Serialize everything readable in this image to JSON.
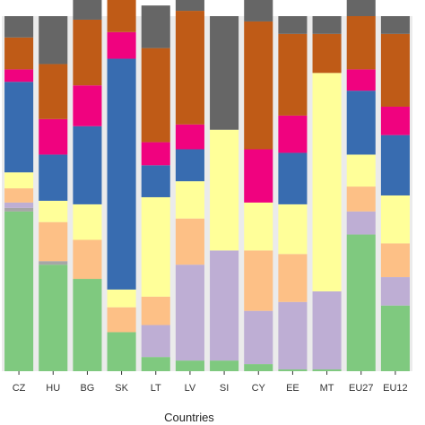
{
  "chart_data": {
    "type": "bar",
    "stacked": true,
    "normalized": true,
    "title": "",
    "xlabel": "Countries",
    "ylabel": "",
    "ylim": [
      0,
      1
    ],
    "grid": false,
    "legend": "none",
    "categories": [
      "CZ",
      "HU",
      "BG",
      "SK",
      "LT",
      "LV",
      "SI",
      "CY",
      "EE",
      "MT",
      "EU27",
      "EU12"
    ],
    "series": [
      {
        "color": "#7fc97f",
        "values": [
          0.45,
          0.3,
          0.26,
          0.11,
          0.04,
          0.03,
          0.03,
          0.02,
          0.005,
          0.005,
          0.385,
          0.185
        ]
      },
      {
        "color": "#a6a6a6",
        "values": [
          0.01,
          0.01,
          0.0,
          0.0,
          0.0,
          0.0,
          0.0,
          0.0,
          0.0,
          0.0,
          0.0,
          0.0
        ]
      },
      {
        "color": "#beaed4",
        "values": [
          0.015,
          0.0,
          0.0,
          0.0,
          0.09,
          0.27,
          0.31,
          0.15,
          0.19,
          0.22,
          0.065,
          0.08
        ]
      },
      {
        "color": "#fdc086",
        "values": [
          0.04,
          0.11,
          0.11,
          0.07,
          0.08,
          0.13,
          0.0,
          0.17,
          0.135,
          0.0,
          0.07,
          0.095
        ]
      },
      {
        "color": "#ffff99",
        "values": [
          0.045,
          0.06,
          0.1,
          0.05,
          0.28,
          0.105,
          0.34,
          0.135,
          0.14,
          0.615,
          0.09,
          0.135
        ]
      },
      {
        "color": "#386cb0",
        "values": [
          0.255,
          0.13,
          0.22,
          0.65,
          0.09,
          0.09,
          0.0,
          0.0,
          0.145,
          0.0,
          0.18,
          0.17
        ]
      },
      {
        "color": "#f0027f",
        "values": [
          0.035,
          0.1,
          0.115,
          0.075,
          0.065,
          0.07,
          0.0,
          0.15,
          0.105,
          0.0,
          0.06,
          0.08
        ]
      },
      {
        "color": "#bf5b17",
        "values": [
          0.09,
          0.155,
          0.185,
          0.095,
          0.265,
          0.32,
          0.0,
          0.36,
          0.23,
          0.11,
          0.15,
          0.205
        ]
      },
      {
        "color": "#666666",
        "values": [
          0.06,
          0.135,
          0.07,
          0.11,
          0.12,
          0.05,
          0.32,
          0.065,
          0.05,
          0.05,
          0.075,
          0.05
        ]
      }
    ]
  }
}
